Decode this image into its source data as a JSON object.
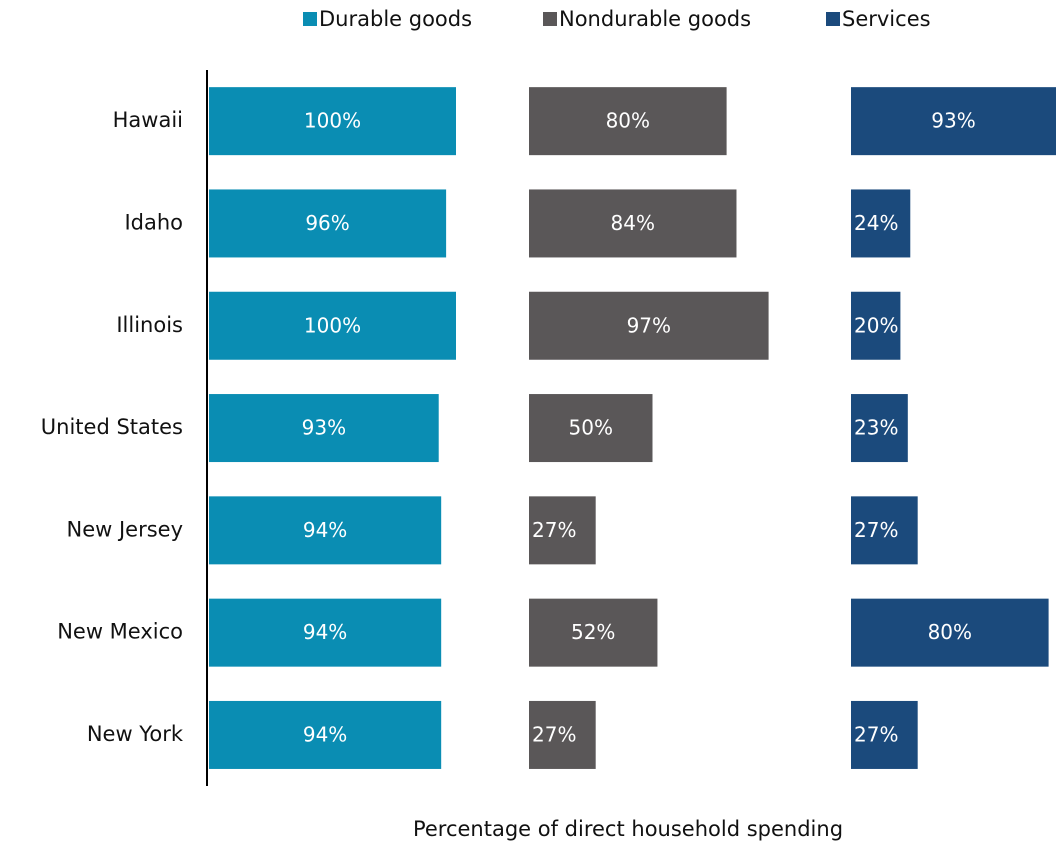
{
  "chart_data": {
    "type": "bar",
    "categories": [
      "Hawaii",
      "Idaho",
      "Illinois",
      "United States",
      "New Jersey",
      "New Mexico",
      "New York"
    ],
    "series": [
      {
        "name": "Durable goods",
        "color": "#0a8db3",
        "values": [
          100,
          96,
          100,
          93,
          94,
          94,
          94
        ],
        "value_labels": [
          "100%",
          "96%",
          "100%",
          "93%",
          "94%",
          "94%",
          "94%"
        ]
      },
      {
        "name": "Nondurable goods",
        "color": "#5a5758",
        "values": [
          80,
          84,
          97,
          50,
          27,
          52,
          27
        ],
        "value_labels": [
          "80%",
          "84%",
          "97%",
          "50%",
          "27%",
          "52%",
          "27%"
        ]
      },
      {
        "name": "Services",
        "color": "#1b4a7c",
        "values": [
          93,
          24,
          20,
          23,
          27,
          80,
          27
        ],
        "value_labels": [
          "93%",
          "24%",
          "20%",
          "23%",
          "27%",
          "80%",
          "27%"
        ]
      }
    ],
    "xlim": [
      0,
      100
    ],
    "xlabel": "Percentage of direct household spending"
  }
}
